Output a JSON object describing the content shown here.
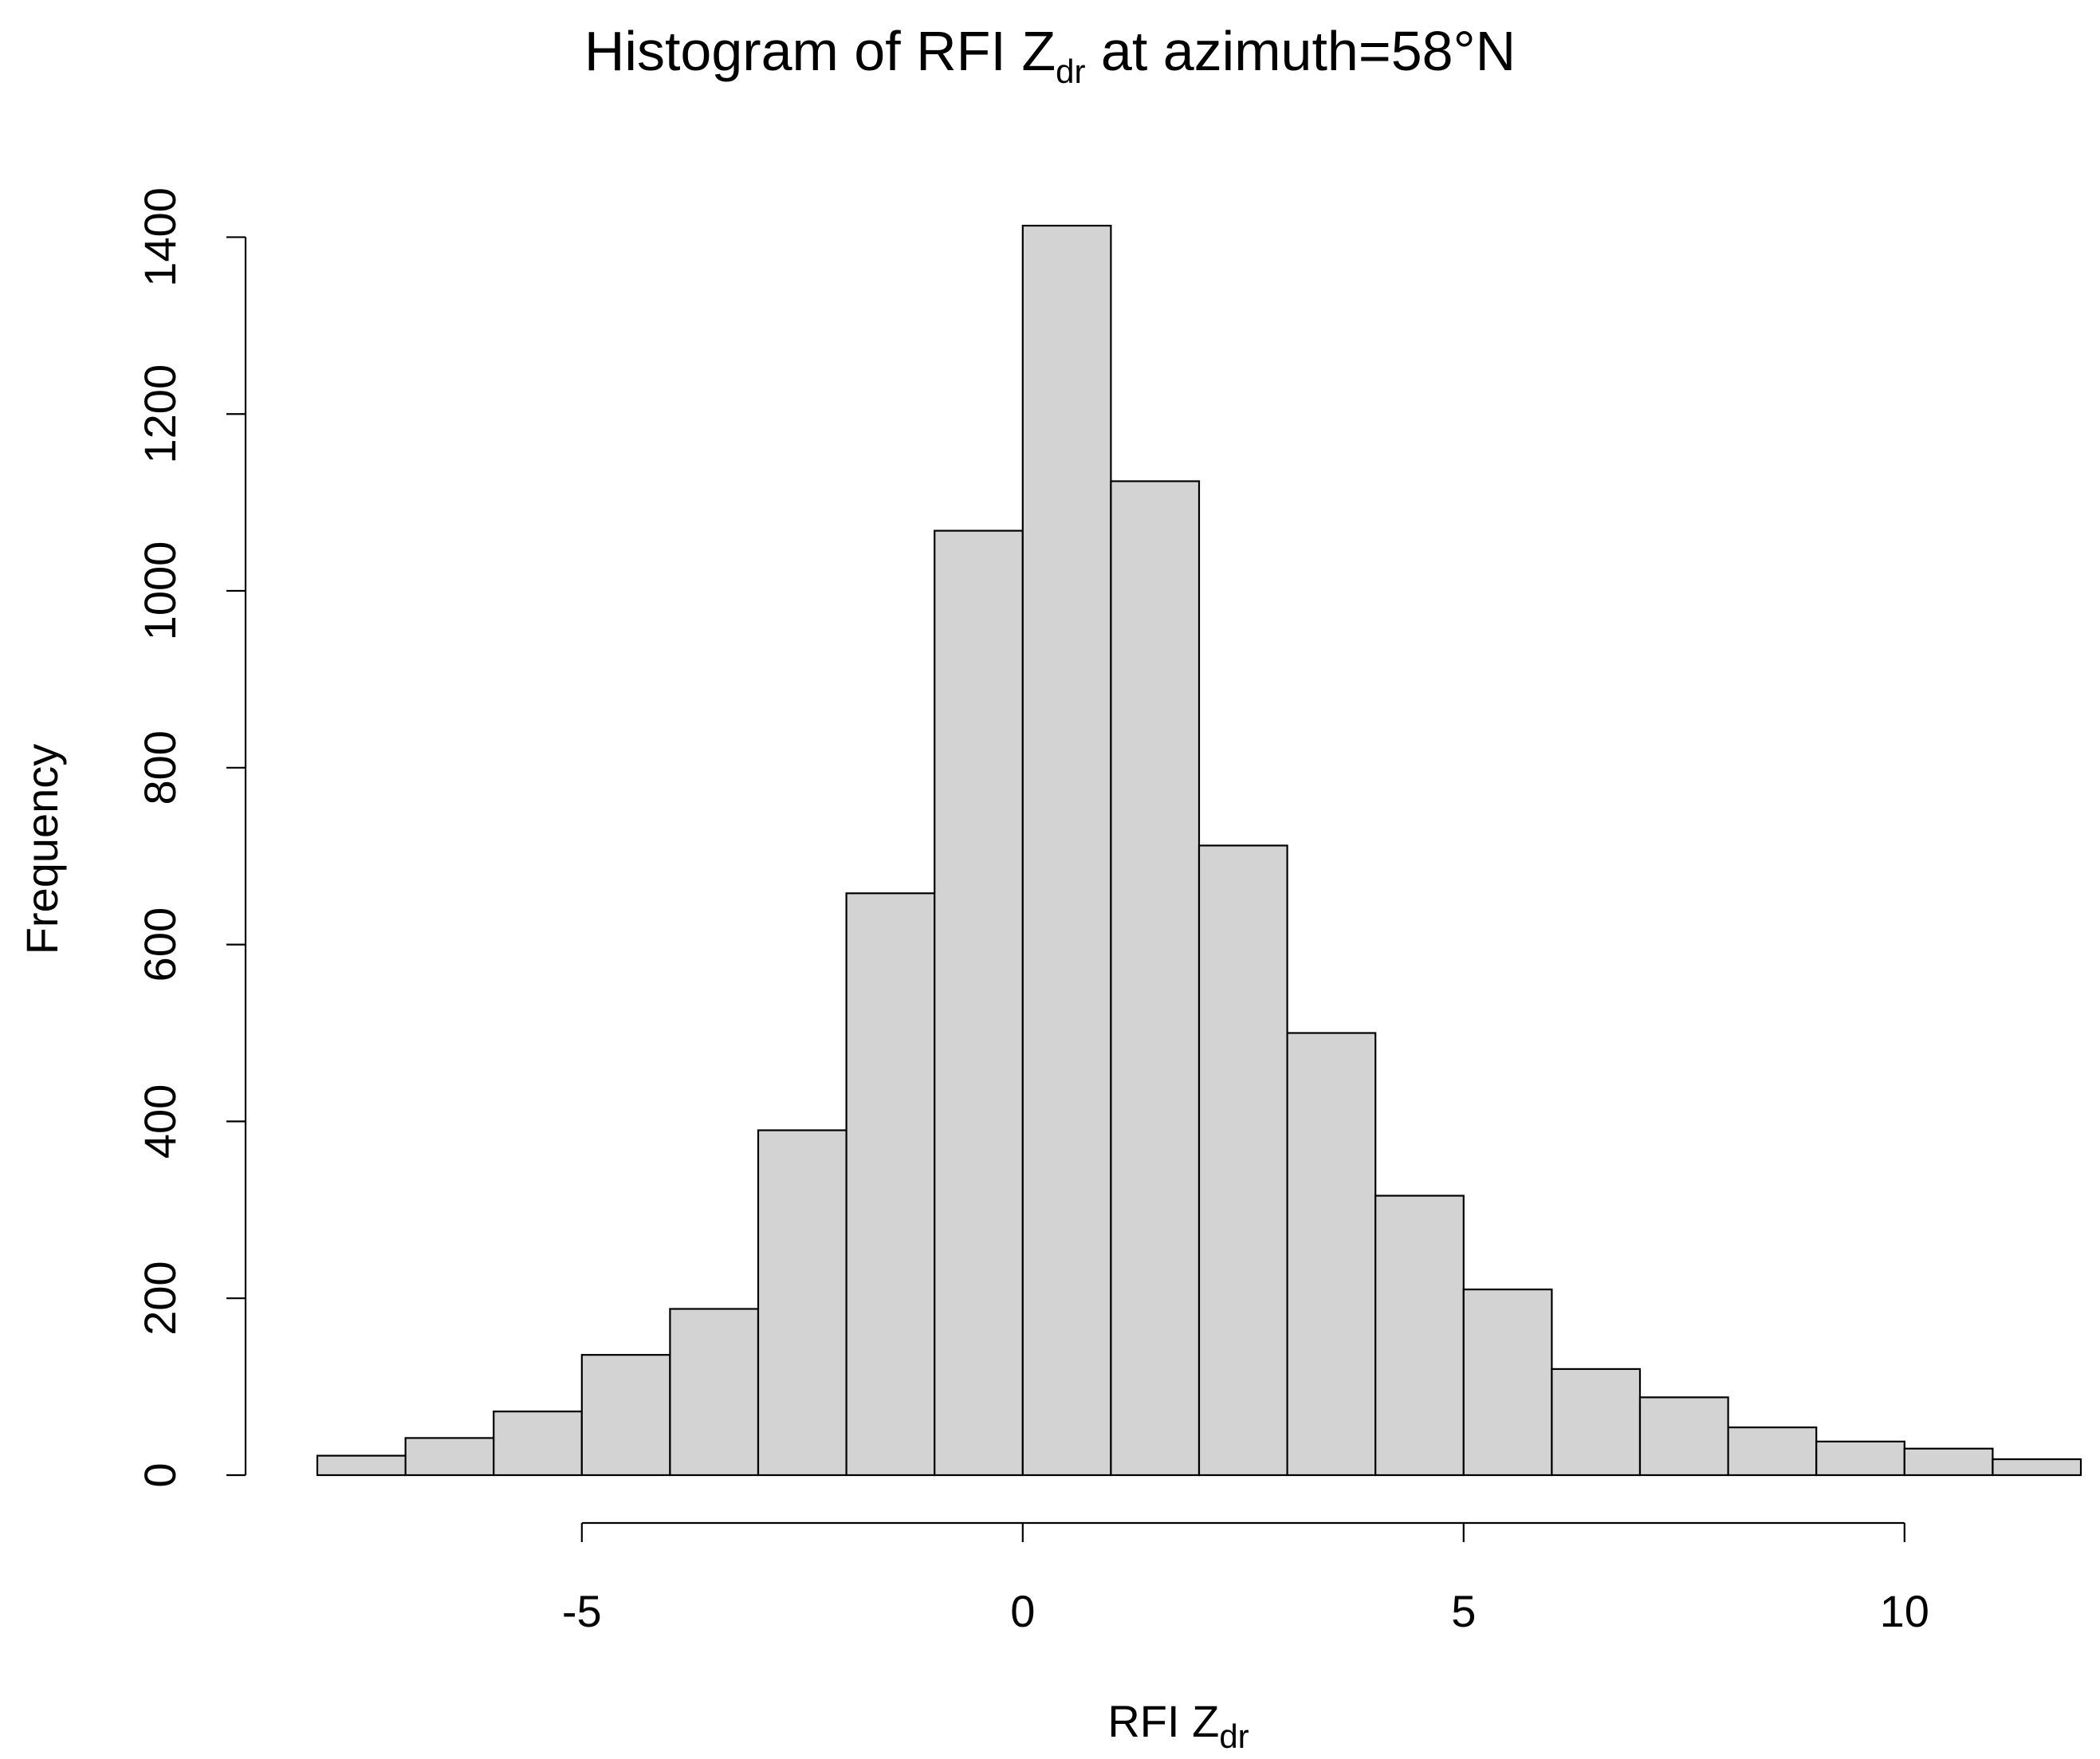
{
  "chart_data": {
    "type": "bar",
    "title": {
      "main": "Histogram of RFI Z",
      "sub": "dr",
      "rest": " at azimuth=58°N"
    },
    "xlabel": {
      "main": "RFI Z",
      "sub": "dr"
    },
    "ylabel": "Frequency",
    "bin_edges": [
      -8,
      -7,
      -6,
      -5,
      -4,
      -3,
      -2,
      -1,
      0,
      1,
      2,
      3,
      4,
      5,
      6,
      7,
      8,
      9,
      10,
      11,
      12
    ],
    "values": [
      22,
      42,
      72,
      136,
      188,
      390,
      658,
      1068,
      1413,
      1124,
      712,
      500,
      316,
      210,
      120,
      88,
      54,
      38,
      30,
      18
    ],
    "xlim": [
      -8,
      12
    ],
    "ylim": [
      0,
      1413
    ],
    "x_ticks": [
      -5,
      0,
      5,
      10
    ],
    "x_tick_labels": [
      "-5",
      "0",
      "5",
      "10"
    ],
    "y_ticks": [
      0,
      200,
      400,
      600,
      800,
      1000,
      1200,
      1400
    ],
    "y_tick_labels": [
      "0",
      "200",
      "400",
      "600",
      "800",
      "1000",
      "1200",
      "1400"
    ],
    "grid": false,
    "legend": "none",
    "colors": {
      "bar_fill": "#d3d3d3",
      "bar_stroke": "#000000"
    }
  }
}
